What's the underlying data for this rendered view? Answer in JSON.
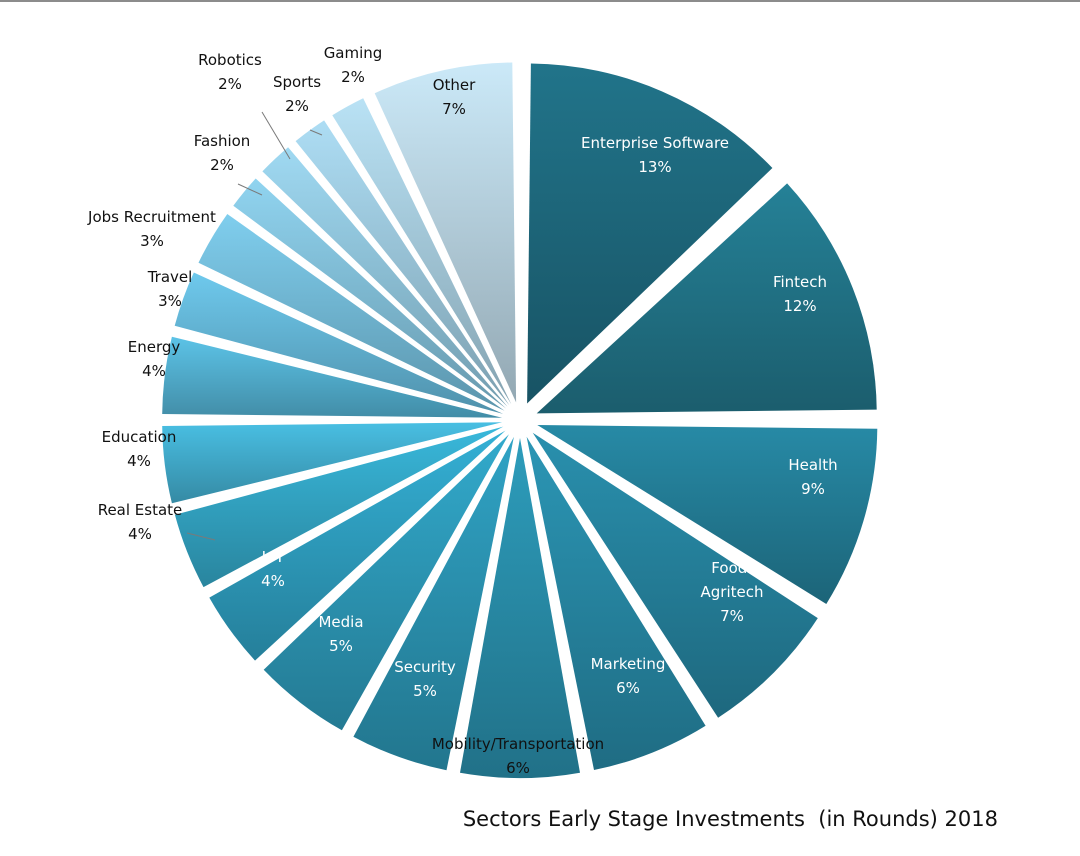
{
  "chart_data": {
    "type": "pie",
    "title": "Sectors Early Stage Investments  (in Rounds) 2018",
    "labels_show_percent": true,
    "slices": [
      {
        "name": "Enterprise Software",
        "value": 13,
        "label": "13%",
        "color": "#1f6b80"
      },
      {
        "name": "Fintech",
        "value": 12,
        "label": "12%",
        "color": "#22778c"
      },
      {
        "name": "Health",
        "value": 9,
        "label": "9%",
        "color": "#24809a"
      },
      {
        "name": "Food-Agritech",
        "value": 7,
        "label": "7%",
        "color": "#2685a1"
      },
      {
        "name": "Marketing",
        "value": 6,
        "label": "6%",
        "color": "#288ba8"
      },
      {
        "name": "Mobility/Transportation",
        "value": 6,
        "label": "6%",
        "color": "#2a91ae"
      },
      {
        "name": "Security",
        "value": 5,
        "label": "5%",
        "color": "#2c97b6"
      },
      {
        "name": "Media",
        "value": 5,
        "label": "5%",
        "color": "#2e9dbd"
      },
      {
        "name": "IoT",
        "value": 4,
        "label": "4%",
        "color": "#30a3c5"
      },
      {
        "name": "Real Estate",
        "value": 4,
        "label": "4%",
        "color": "#35aacb"
      },
      {
        "name": "Education",
        "value": 4,
        "label": "4%",
        "color": "#44b1d2"
      },
      {
        "name": "Energy",
        "value": 4,
        "label": "4%",
        "color": "#55b5d6"
      },
      {
        "name": "Travel",
        "value": 3,
        "label": "3%",
        "color": "#66badb"
      },
      {
        "name": "Jobs Recruitment",
        "value": 3,
        "label": "3%",
        "color": "#76bfdc"
      },
      {
        "name": "Fashion",
        "value": 2,
        "label": "2%",
        "color": "#85c4de"
      },
      {
        "name": "Robotics",
        "value": 2,
        "label": "2%",
        "color": "#93c9e0"
      },
      {
        "name": "Sports",
        "value": 2,
        "label": "2%",
        "color": "#a0cde2"
      },
      {
        "name": "Gaming",
        "value": 2,
        "label": "2%",
        "color": "#abd1e3"
      },
      {
        "name": "Other",
        "value": 7,
        "label": "7%",
        "color": "#bcd8e6"
      }
    ]
  }
}
